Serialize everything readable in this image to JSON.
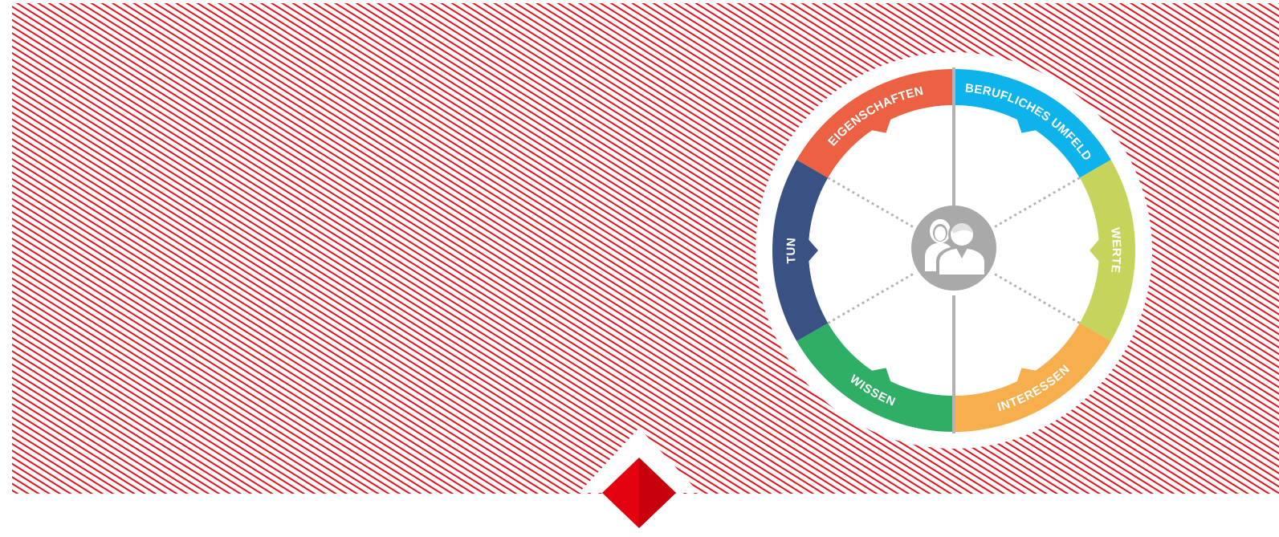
{
  "diagram": {
    "colors": {
      "stripe": "#e3121b",
      "stripe_background": "#ffffff",
      "inner_ring": "#ffffff",
      "spokes": "#b3b3b3",
      "hub": "#a9a9a9",
      "hub_icon": "#ffffff",
      "diamond": "#e3000f",
      "diamond_shade": "#c8000c"
    },
    "center_icon": "people-icon",
    "segments": [
      {
        "label": "BERUFLICHES UMFELD",
        "color": "#0db3ea"
      },
      {
        "label": "WERTE",
        "color": "#c6d45c"
      },
      {
        "label": "INTERESSEN",
        "color": "#f7ae4c"
      },
      {
        "label": "WISSEN",
        "color": "#2fae66"
      },
      {
        "label": "TUN",
        "color": "#3a5183"
      },
      {
        "label": "EIGENSCHAFTEN",
        "color": "#ec6142"
      }
    ],
    "bottom_logo": "diamond-logo-icon"
  }
}
